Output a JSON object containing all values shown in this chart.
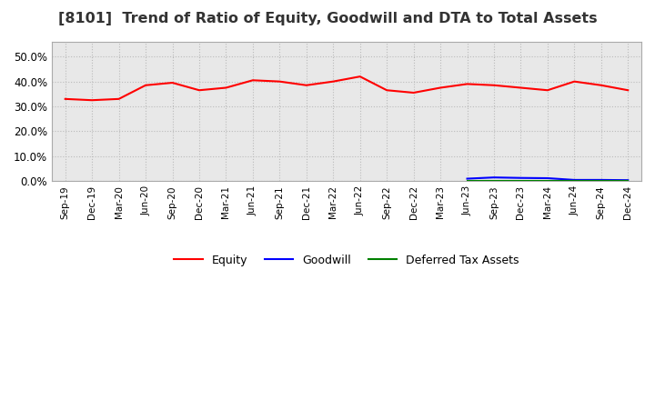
{
  "title": "[8101]  Trend of Ratio of Equity, Goodwill and DTA to Total Assets",
  "x_labels": [
    "Sep-19",
    "Dec-19",
    "Mar-20",
    "Jun-20",
    "Sep-20",
    "Dec-20",
    "Mar-21",
    "Jun-21",
    "Sep-21",
    "Dec-21",
    "Mar-22",
    "Jun-22",
    "Sep-22",
    "Dec-22",
    "Mar-23",
    "Jun-23",
    "Sep-23",
    "Dec-23",
    "Mar-24",
    "Jun-24",
    "Sep-24",
    "Dec-24"
  ],
  "equity": [
    0.33,
    0.325,
    0.33,
    0.385,
    0.395,
    0.365,
    0.375,
    0.405,
    0.4,
    0.385,
    0.4,
    0.42,
    0.365,
    0.355,
    0.375,
    0.39,
    0.385,
    0.375,
    0.365,
    0.4,
    0.385,
    0.365
  ],
  "goodwill": [
    null,
    null,
    null,
    null,
    null,
    null,
    null,
    null,
    null,
    null,
    null,
    null,
    null,
    null,
    null,
    0.01,
    0.015,
    0.013,
    0.012,
    0.005,
    0.005,
    0.004
  ],
  "dta": [
    null,
    null,
    null,
    null,
    null,
    null,
    null,
    null,
    null,
    null,
    null,
    null,
    null,
    null,
    null,
    0.001,
    0.001,
    0.001,
    0.001,
    0.001,
    0.001,
    0.001
  ],
  "equity_color": "#FF0000",
  "goodwill_color": "#0000FF",
  "dta_color": "#008000",
  "ylim": [
    0.0,
    0.56
  ],
  "yticks": [
    0.0,
    0.1,
    0.2,
    0.3,
    0.4,
    0.5
  ],
  "background_color": "#FFFFFF",
  "plot_bg_color": "#E8E8E8",
  "grid_color": "#BBBBBB",
  "title_fontsize": 11.5
}
